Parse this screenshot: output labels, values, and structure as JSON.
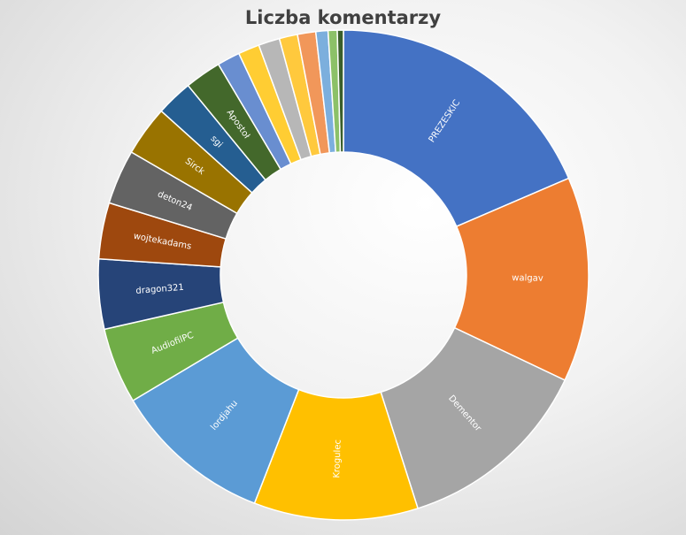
{
  "chart_data": {
    "type": "pie",
    "subtype": "doughnut",
    "title": "Liczba komentarzy",
    "legend": "none",
    "start": "top",
    "direction": "clockwise",
    "slices": [
      {
        "label": "PREZESKIC",
        "value": 18.5,
        "color": "#4472C4",
        "show_label": true
      },
      {
        "label": "walgav",
        "value": 13.5,
        "color": "#ED7D31",
        "show_label": true
      },
      {
        "label": "Dementor",
        "value": 13.0,
        "color": "#A5A5A5",
        "show_label": true
      },
      {
        "label": "Krogulec",
        "value": 10.8,
        "color": "#FFC000",
        "show_label": true
      },
      {
        "label": "lordjahu",
        "value": 10.5,
        "color": "#5B9BD5",
        "show_label": true
      },
      {
        "label": "AudiofilPC",
        "value": 5.0,
        "color": "#70AD47",
        "show_label": true
      },
      {
        "label": "dragon321",
        "value": 4.6,
        "color": "#264478",
        "show_label": true
      },
      {
        "label": "wojtekadams",
        "value": 3.7,
        "color": "#9E480E",
        "show_label": true
      },
      {
        "label": "deton24",
        "value": 3.6,
        "color": "#636363",
        "show_label": true
      },
      {
        "label": "Sirck",
        "value": 3.3,
        "color": "#997300",
        "show_label": true
      },
      {
        "label": "sgi",
        "value": 2.4,
        "color": "#255E91",
        "show_label": true
      },
      {
        "label": "Apostoł",
        "value": 2.4,
        "color": "#43682B",
        "show_label": true
      },
      {
        "label": "",
        "value": 1.5,
        "color": "#698ED0",
        "show_label": false
      },
      {
        "label": "",
        "value": 1.4,
        "color": "#FFCD33",
        "show_label": false
      },
      {
        "label": "",
        "value": 1.4,
        "color": "#B7B7B7",
        "show_label": false
      },
      {
        "label": "",
        "value": 1.2,
        "color": "#FFC93D",
        "show_label": false
      },
      {
        "label": "",
        "value": 1.2,
        "color": "#F1975A",
        "show_label": false
      },
      {
        "label": "",
        "value": 0.8,
        "color": "#7CAFDD",
        "show_label": false
      },
      {
        "label": "",
        "value": 0.6,
        "color": "#8CC168",
        "show_label": false
      },
      {
        "label": "",
        "value": 0.4,
        "color": "#3A5E2A",
        "show_label": false
      }
    ]
  }
}
